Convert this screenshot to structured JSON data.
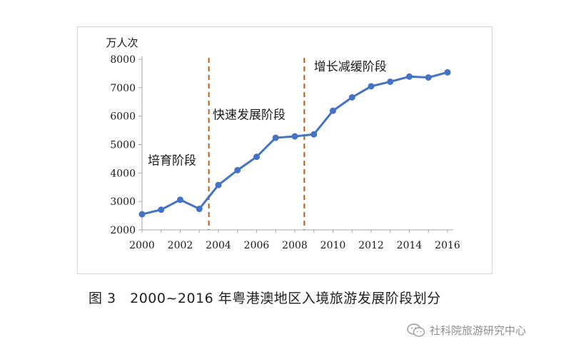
{
  "chart_data": {
    "type": "line",
    "ylabel": "万人次",
    "x": [
      2000,
      2001,
      2002,
      2003,
      2004,
      2005,
      2006,
      2007,
      2008,
      2009,
      2010,
      2011,
      2012,
      2013,
      2014,
      2015,
      2016
    ],
    "series": [
      {
        "values": [
          2550,
          2710,
          3060,
          2740,
          3580,
          4100,
          4570,
          5240,
          5290,
          5360,
          6190,
          6660,
          7050,
          7210,
          7390,
          7360,
          7540
        ]
      }
    ],
    "xticks": [
      "2000",
      "2002",
      "2004",
      "2006",
      "2008",
      "2010",
      "2012",
      "2014",
      "2016"
    ],
    "yticks": [
      "2000",
      "3000",
      "4000",
      "5000",
      "6000",
      "7000",
      "8000"
    ],
    "ylim": [
      2000,
      8000
    ],
    "xlim": [
      2000,
      2016
    ],
    "grid": false,
    "line_color": "#4472c4",
    "divider_color": "#c55a11",
    "dividers": [
      2003.5,
      2008.5
    ],
    "annotations": [
      {
        "text": "培育阶段",
        "x": 2000.3,
        "y": 4300
      },
      {
        "text": "快速发展阶段",
        "x": 2003.7,
        "y": 5900
      },
      {
        "text": "增长减缓阶段",
        "x": 2009.0,
        "y": 7600
      }
    ]
  },
  "caption": "图 3　2000~2016 年粤港澳地区入境旅游发展阶段划分",
  "watermark": {
    "text": "社科院旅游研究中心",
    "icon": "wechat-icon"
  }
}
